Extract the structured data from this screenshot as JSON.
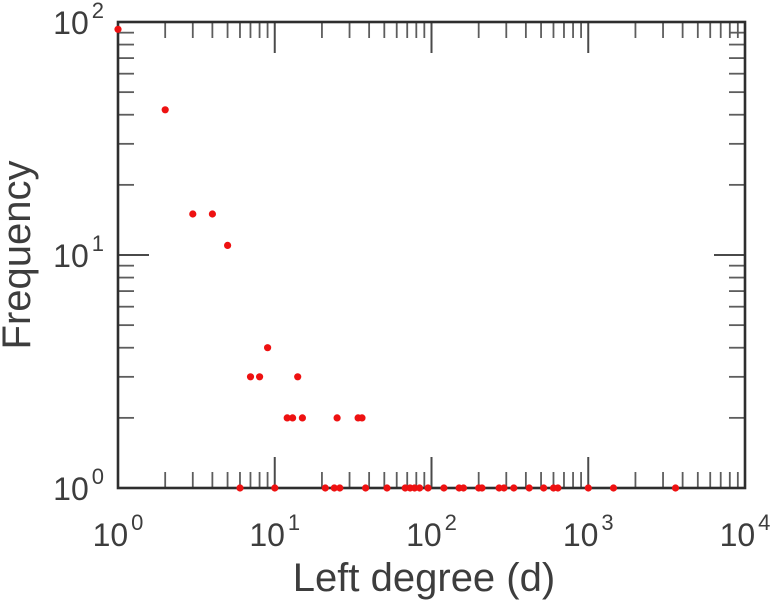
{
  "chart_data": {
    "type": "scatter",
    "title": "",
    "xlabel": "Left degree (d)",
    "ylabel": "Frequency",
    "x_scale": "log",
    "y_scale": "log",
    "x_range": [
      1,
      10000
    ],
    "y_range": [
      1,
      100
    ],
    "x_tick_exponents": [
      0,
      1,
      2,
      3,
      4
    ],
    "y_tick_exponents": [
      0,
      1,
      2
    ],
    "tick_base": "10",
    "grid": false,
    "legend": null,
    "n_points": 42,
    "marker": {
      "shape": "circle",
      "color": "#ee1111",
      "radius_px": 3.6
    },
    "points": [
      {
        "d": 1,
        "freq": 93
      },
      {
        "d": 2,
        "freq": 42
      },
      {
        "d": 3,
        "freq": 15
      },
      {
        "d": 4,
        "freq": 15
      },
      {
        "d": 5,
        "freq": 11
      },
      {
        "d": 6,
        "freq": 1
      },
      {
        "d": 7,
        "freq": 3
      },
      {
        "d": 8,
        "freq": 3
      },
      {
        "d": 9,
        "freq": 4
      },
      {
        "d": 10,
        "freq": 1
      },
      {
        "d": 12,
        "freq": 2
      },
      {
        "d": 13,
        "freq": 2
      },
      {
        "d": 14,
        "freq": 3
      },
      {
        "d": 15,
        "freq": 2
      },
      {
        "d": 21,
        "freq": 1
      },
      {
        "d": 24,
        "freq": 1
      },
      {
        "d": 25,
        "freq": 2
      },
      {
        "d": 26,
        "freq": 1
      },
      {
        "d": 34,
        "freq": 2
      },
      {
        "d": 36,
        "freq": 2
      },
      {
        "d": 38,
        "freq": 1
      },
      {
        "d": 52,
        "freq": 1
      },
      {
        "d": 68,
        "freq": 1
      },
      {
        "d": 73,
        "freq": 1
      },
      {
        "d": 78,
        "freq": 1
      },
      {
        "d": 84,
        "freq": 1
      },
      {
        "d": 95,
        "freq": 1
      },
      {
        "d": 120,
        "freq": 1
      },
      {
        "d": 150,
        "freq": 1
      },
      {
        "d": 160,
        "freq": 1
      },
      {
        "d": 200,
        "freq": 1
      },
      {
        "d": 210,
        "freq": 1
      },
      {
        "d": 270,
        "freq": 1
      },
      {
        "d": 290,
        "freq": 1
      },
      {
        "d": 335,
        "freq": 1
      },
      {
        "d": 420,
        "freq": 1
      },
      {
        "d": 520,
        "freq": 1
      },
      {
        "d": 600,
        "freq": 1
      },
      {
        "d": 640,
        "freq": 1
      },
      {
        "d": 1000,
        "freq": 1
      },
      {
        "d": 1450,
        "freq": 1
      },
      {
        "d": 3600,
        "freq": 1
      }
    ]
  },
  "colors": {
    "background": "#ffffff",
    "plot_border": "#2e2e2e",
    "ticks": "#5d5d5d",
    "text": "#3d3d3d",
    "marker": "#ee1111"
  }
}
